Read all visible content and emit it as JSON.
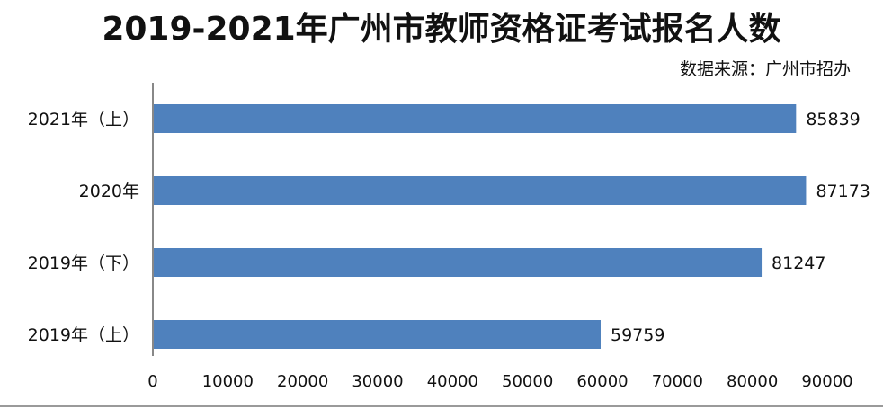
{
  "chart_data": {
    "type": "bar",
    "orientation": "horizontal",
    "title": "2019-2021年广州市教师资格证考试报名人数",
    "source": "数据来源：广州市招办",
    "categories": [
      "2021年（上）",
      "2020年",
      "2019年（下）",
      "2019年（上）"
    ],
    "values": [
      85839,
      87173,
      81247,
      59759
    ],
    "xlim": [
      0,
      90000
    ],
    "ticks": [
      0,
      10000,
      20000,
      30000,
      40000,
      50000,
      60000,
      70000,
      80000,
      90000
    ],
    "grid": false,
    "legend": "none",
    "bar_color": "#4f81bd",
    "axis_color": "#888888"
  }
}
